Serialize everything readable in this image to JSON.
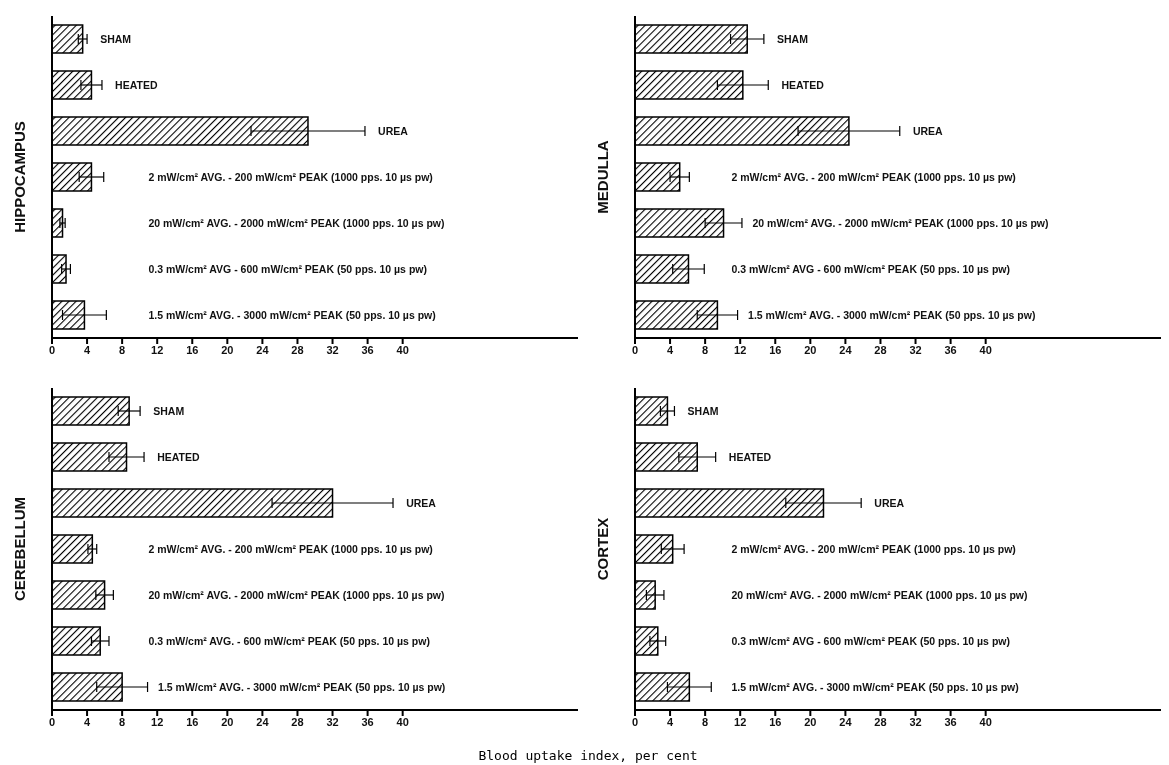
{
  "chart_data": [
    {
      "type": "bar",
      "orientation": "horizontal",
      "ylabel": "HIPPOCAMPUS",
      "categories": [
        "SHAM",
        "HEATED",
        "UREA",
        "2 mW/cm² AVG. - 200 mW/cm² PEAK (1000 pps. 10 µs pw)",
        "20 mW/cm² AVG. - 2000 mW/cm² PEAK (1000 pps. 10 µs pw)",
        "0.3 mW/cm² AVG - 600 mW/cm² PEAK (50 pps. 10 µs pw)",
        "1.5 mW/cm² AVG. - 3000 mW/cm² PEAK (50 pps. 10 µs pw)"
      ],
      "values": [
        3.5,
        4.5,
        29.2,
        4.5,
        1.2,
        1.6,
        3.7
      ],
      "errors": [
        0.5,
        1.2,
        6.5,
        1.4,
        0.3,
        0.5,
        2.5
      ],
      "color": "#000000",
      "xlim": [
        0,
        60
      ],
      "xticks": [
        0,
        4,
        8,
        12,
        16,
        20,
        24,
        28,
        32,
        36,
        40
      ]
    },
    {
      "type": "bar",
      "orientation": "horizontal",
      "ylabel": "MEDULLA",
      "categories": [
        "SHAM",
        "HEATED",
        "UREA",
        "2 mW/cm² AVG. - 200 mW/cm² PEAK (1000 pps. 10 µs pw)",
        "20 mW/cm² AVG. - 2000 mW/cm² PEAK (1000 pps. 10 µs pw)",
        "0.3 mW/cm² AVG - 600 mW/cm² PEAK (50 pps. 10 µs pw)",
        "1.5 mW/cm² AVG. - 3000 mW/cm² PEAK (50 pps. 10 µs pw)"
      ],
      "values": [
        12.8,
        12.3,
        24.4,
        5.1,
        10.1,
        6.1,
        9.4
      ],
      "errors": [
        1.9,
        2.9,
        5.8,
        1.1,
        2.1,
        1.8,
        2.3
      ],
      "color": "#000000",
      "xlim": [
        0,
        60
      ],
      "xticks": [
        0,
        4,
        8,
        12,
        16,
        20,
        24,
        28,
        32,
        36,
        40
      ]
    },
    {
      "type": "bar",
      "orientation": "horizontal",
      "ylabel": "CEREBELLUM",
      "xlabel": "Blood uptake index, per cent",
      "categories": [
        "SHAM",
        "HEATED",
        "UREA",
        "2 mW/cm² AVG. - 200 mW/cm² PEAK (1000 pps. 10 µs pw)",
        "20 mW/cm² AVG. - 2000 mW/cm² PEAK (1000 pps. 10 µs pw)",
        "0.3 mW/cm² AVG. - 600 mW/cm² PEAK (50 pps. 10 µs pw)",
        "1.5 mW/cm² AVG. - 3000 mW/cm² PEAK (50 pps. 10 µs pw)"
      ],
      "values": [
        8.8,
        8.5,
        32,
        4.6,
        6,
        5.5,
        8
      ],
      "errors": [
        1.25,
        2,
        6.9,
        0.5,
        1,
        1,
        2.9
      ],
      "color": "#000000",
      "xlim": [
        0,
        60
      ],
      "xticks": [
        0,
        4,
        8,
        12,
        16,
        20,
        24,
        28,
        32,
        36,
        40
      ]
    },
    {
      "type": "bar",
      "orientation": "horizontal",
      "ylabel": "CORTEX",
      "categories": [
        "SHAM",
        "HEATED",
        "UREA",
        "2 mW/cm² AVG. - 200 mW/cm² PEAK (1000 pps. 10 µs pw)",
        "20 mW/cm² AVG. - 2000 mW/cm² PEAK (1000 pps. 10 µs pw)",
        "0.3 mW/cm² AVG - 600 mW/cm² PEAK (50 pps. 10 µs pw)",
        "1.5 mW/cm² AVG. - 3000 mW/cm² PEAK (50 pps. 10 µs pw)"
      ],
      "values": [
        3.7,
        7.1,
        21.5,
        4.3,
        2.3,
        2.6,
        6.2
      ],
      "errors": [
        0.8,
        2.1,
        4.3,
        1.3,
        1,
        0.9,
        2.5
      ],
      "color": "#000000",
      "xlim": [
        0,
        60
      ],
      "xticks": [
        0,
        4,
        8,
        12,
        16,
        20,
        24,
        28,
        32,
        36,
        40
      ]
    }
  ]
}
